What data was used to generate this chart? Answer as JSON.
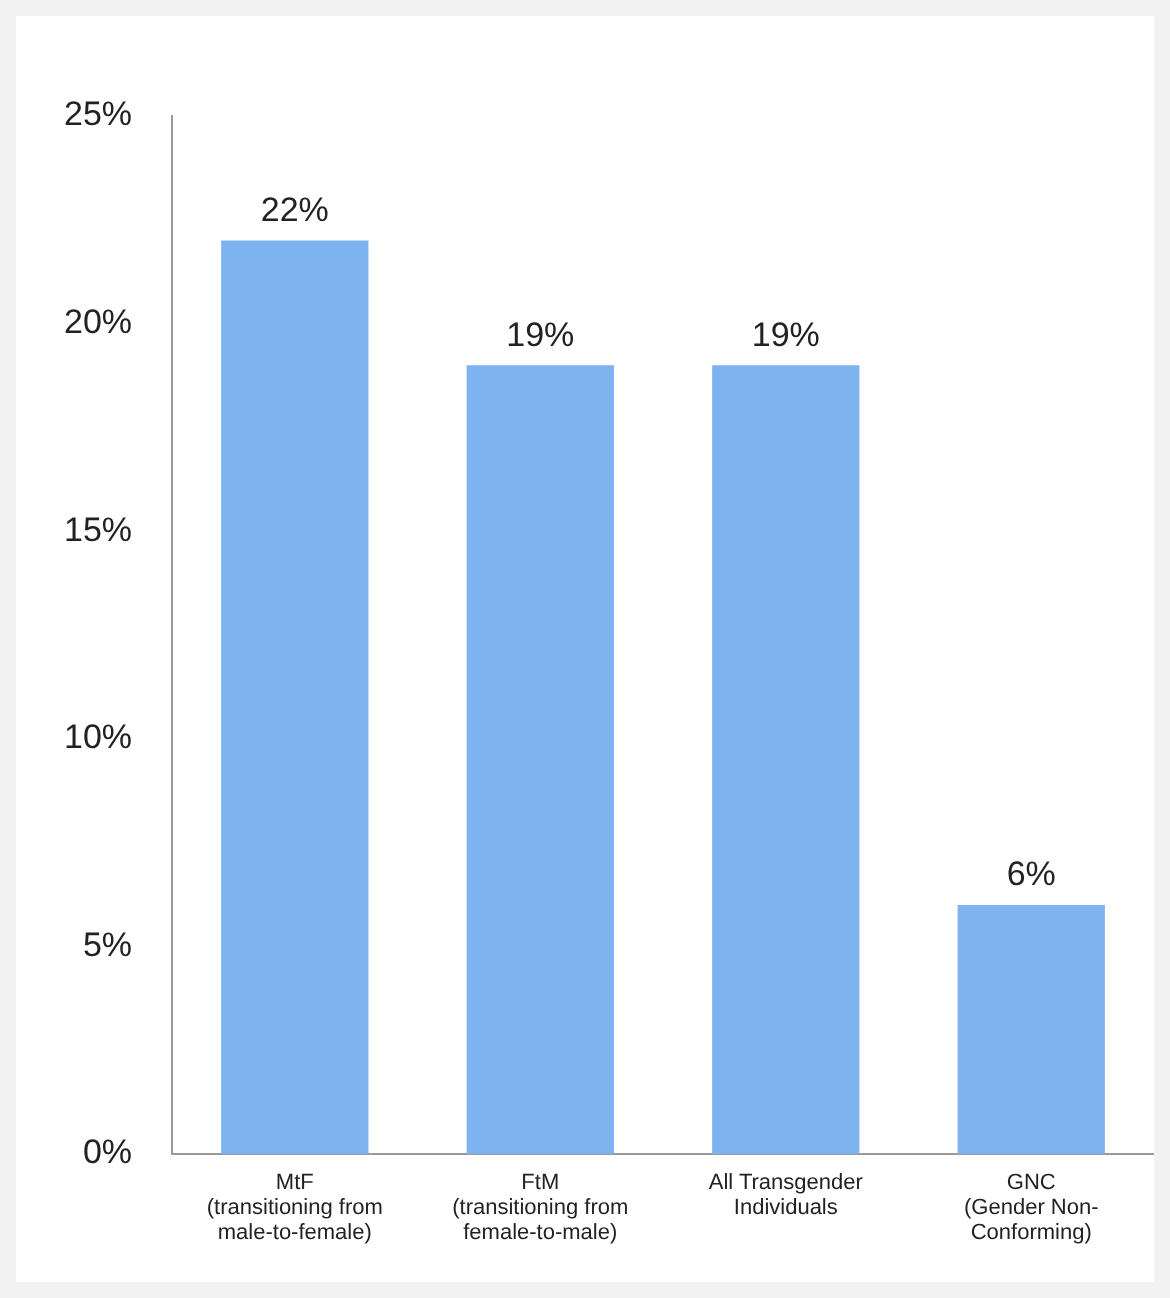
{
  "chart_data": {
    "type": "bar",
    "categories": [
      "MtF\n(transitioning from\nmale-to-female)",
      "FtM\n(transitioning from\nfemale-to-male)",
      "All Transgender\nIndividuals",
      "GNC\n(Gender Non-\nConforming)"
    ],
    "values": [
      22,
      19,
      19,
      6
    ],
    "color": "#7db3ef",
    "value_labels": [
      "22%",
      "19%",
      "19%",
      "6%"
    ],
    "ylim": [
      0,
      25
    ],
    "yticks": [
      {
        "value": 0,
        "label": "0%"
      },
      {
        "value": 5,
        "label": "5%"
      },
      {
        "value": 10,
        "label": "10%"
      },
      {
        "value": 15,
        "label": "15%"
      },
      {
        "value": 20,
        "label": "20%"
      },
      {
        "value": 25,
        "label": "25%"
      }
    ],
    "grid": false,
    "legend": false
  }
}
